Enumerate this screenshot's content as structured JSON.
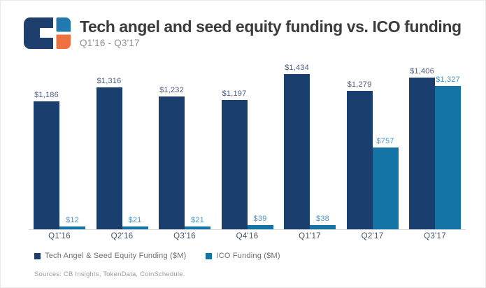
{
  "logo": {
    "icon": "cb-insights-logo",
    "colors": {
      "navy": "#1e3f6e",
      "blue": "#2279b0",
      "orange": "#ee7140"
    }
  },
  "chart_data": {
    "type": "bar",
    "title": "Tech angel and seed equity funding vs. ICO funding",
    "subtitle": "Q1'16 - Q3'17",
    "categories": [
      "Q1'16",
      "Q2'16",
      "Q3'16",
      "Q4'16",
      "Q1'17",
      "Q2'17",
      "Q3'17"
    ],
    "series": [
      {
        "name": "Tech Angel & Seed Equity Funding ($M)",
        "color": "#1a3e6e",
        "label_color": "#4a5b80",
        "values": [
          1186,
          1316,
          1232,
          1197,
          1434,
          1279,
          1406
        ],
        "labels": [
          "$1,186",
          "$1,316",
          "$1,232",
          "$1,197",
          "$1,434",
          "$1,279",
          "$1,406"
        ]
      },
      {
        "name": "ICO Funding ($M)",
        "color": "#1574a6",
        "label_color": "#4c95c7",
        "values": [
          12,
          21,
          21,
          39,
          38,
          757,
          1327
        ],
        "labels": [
          "$12",
          "$21",
          "$21",
          "$39",
          "$38",
          "$757",
          "$1,327"
        ]
      }
    ],
    "xlabel": "",
    "ylabel": "",
    "ylim": [
      0,
      1450
    ],
    "grid": false,
    "legend_position": "bottom-left",
    "value_labels": "above-bars"
  },
  "footer": {
    "sources": "Sources: CB Insights, TokenData, CoinSchedule."
  }
}
